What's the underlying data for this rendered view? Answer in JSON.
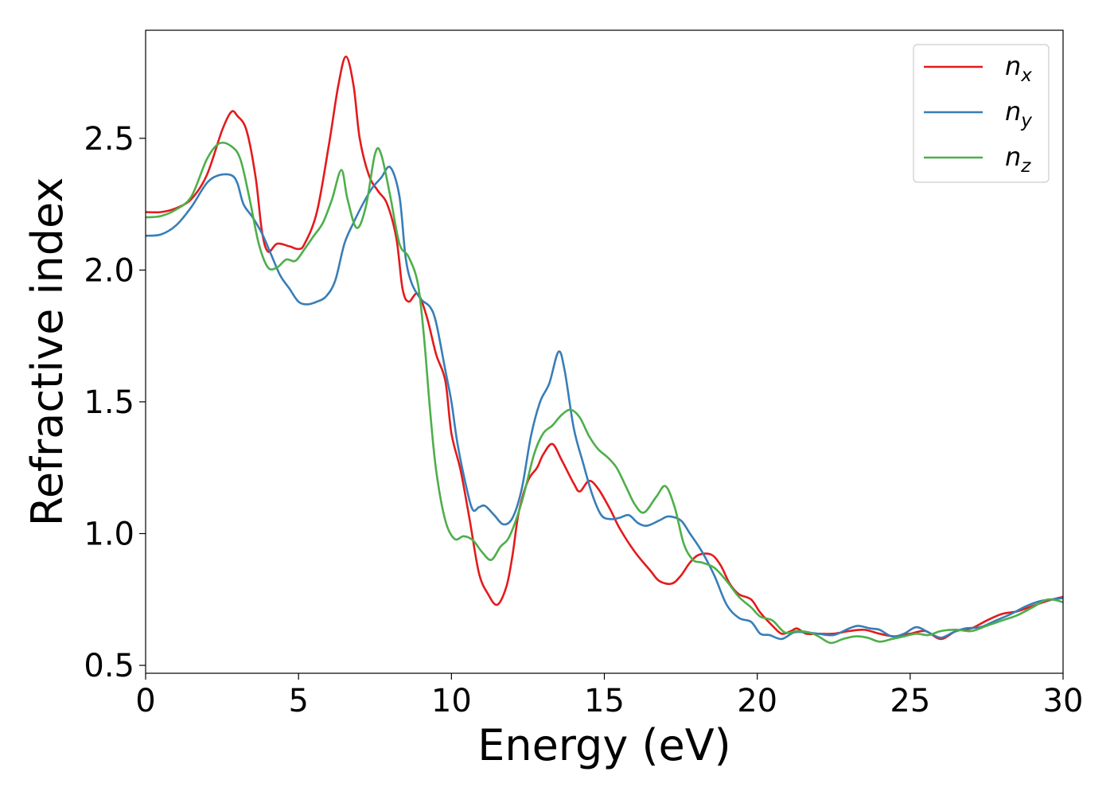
{
  "chart_data": {
    "type": "line",
    "title": "",
    "xlabel": "Energy (eV)",
    "ylabel": "Refractive index",
    "xlim": [
      0,
      30
    ],
    "ylim": [
      0.47,
      2.91
    ],
    "xticks": [
      0,
      5,
      10,
      15,
      20,
      25,
      30
    ],
    "xtick_labels": [
      "0",
      "5",
      "10",
      "15",
      "20",
      "25",
      "30"
    ],
    "yticks": [
      0.5,
      1.0,
      1.5,
      2.0,
      2.5
    ],
    "ytick_labels": [
      "0.5",
      "1.0",
      "1.5",
      "2.0",
      "2.5"
    ],
    "grid": false,
    "legend_position": "top-right",
    "series": [
      {
        "name": "n_x",
        "label_base": "n",
        "label_sub": "x",
        "color": "#e41a1c",
        "points": [
          [
            0,
            2.22
          ],
          [
            0.5,
            2.22
          ],
          [
            1,
            2.235
          ],
          [
            1.5,
            2.27
          ],
          [
            2,
            2.36
          ],
          [
            2.5,
            2.53
          ],
          [
            2.8,
            2.6
          ],
          [
            3,
            2.585
          ],
          [
            3.3,
            2.53
          ],
          [
            3.6,
            2.35
          ],
          [
            3.8,
            2.15
          ],
          [
            4.0,
            2.07
          ],
          [
            4.3,
            2.1
          ],
          [
            4.7,
            2.09
          ],
          [
            5.0,
            2.08
          ],
          [
            5.2,
            2.1
          ],
          [
            5.6,
            2.22
          ],
          [
            6.0,
            2.48
          ],
          [
            6.3,
            2.7
          ],
          [
            6.55,
            2.81
          ],
          [
            6.8,
            2.7
          ],
          [
            7.0,
            2.5
          ],
          [
            7.3,
            2.36
          ],
          [
            7.6,
            2.3
          ],
          [
            7.9,
            2.25
          ],
          [
            8.2,
            2.12
          ],
          [
            8.4,
            1.93
          ],
          [
            8.6,
            1.88
          ],
          [
            8.9,
            1.91
          ],
          [
            9.2,
            1.82
          ],
          [
            9.5,
            1.68
          ],
          [
            9.8,
            1.58
          ],
          [
            10.0,
            1.38
          ],
          [
            10.3,
            1.24
          ],
          [
            10.6,
            1.05
          ],
          [
            10.9,
            0.85
          ],
          [
            11.2,
            0.77
          ],
          [
            11.5,
            0.73
          ],
          [
            11.8,
            0.8
          ],
          [
            12.0,
            0.92
          ],
          [
            12.2,
            1.08
          ],
          [
            12.5,
            1.2
          ],
          [
            12.8,
            1.25
          ],
          [
            13.0,
            1.3
          ],
          [
            13.3,
            1.34
          ],
          [
            13.6,
            1.28
          ],
          [
            14.0,
            1.19
          ],
          [
            14.2,
            1.16
          ],
          [
            14.5,
            1.2
          ],
          [
            14.8,
            1.17
          ],
          [
            15.2,
            1.09
          ],
          [
            15.5,
            1.02
          ],
          [
            16.0,
            0.93
          ],
          [
            16.5,
            0.86
          ],
          [
            16.8,
            0.82
          ],
          [
            17.2,
            0.81
          ],
          [
            17.5,
            0.84
          ],
          [
            17.8,
            0.89
          ],
          [
            18.1,
            0.92
          ],
          [
            18.5,
            0.92
          ],
          [
            18.8,
            0.88
          ],
          [
            19.1,
            0.81
          ],
          [
            19.4,
            0.77
          ],
          [
            19.8,
            0.75
          ],
          [
            20.1,
            0.7
          ],
          [
            20.5,
            0.65
          ],
          [
            20.8,
            0.62
          ],
          [
            21.1,
            0.63
          ],
          [
            21.3,
            0.64
          ],
          [
            21.6,
            0.62
          ],
          [
            22.0,
            0.62
          ],
          [
            22.5,
            0.62
          ],
          [
            23.0,
            0.63
          ],
          [
            23.5,
            0.635
          ],
          [
            24.0,
            0.62
          ],
          [
            24.5,
            0.61
          ],
          [
            25.0,
            0.62
          ],
          [
            25.5,
            0.63
          ],
          [
            26.0,
            0.6
          ],
          [
            26.5,
            0.63
          ],
          [
            27.0,
            0.64
          ],
          [
            27.5,
            0.67
          ],
          [
            28.0,
            0.695
          ],
          [
            28.5,
            0.705
          ],
          [
            29.0,
            0.725
          ],
          [
            29.5,
            0.745
          ],
          [
            30.0,
            0.76
          ]
        ]
      },
      {
        "name": "n_y",
        "label_base": "n",
        "label_sub": "y",
        "color": "#377eb8",
        "points": [
          [
            0,
            2.13
          ],
          [
            0.5,
            2.135
          ],
          [
            1,
            2.17
          ],
          [
            1.5,
            2.24
          ],
          [
            2,
            2.33
          ],
          [
            2.4,
            2.36
          ],
          [
            2.8,
            2.36
          ],
          [
            3.0,
            2.33
          ],
          [
            3.2,
            2.25
          ],
          [
            3.5,
            2.2
          ],
          [
            3.8,
            2.14
          ],
          [
            4.1,
            2.06
          ],
          [
            4.4,
            1.98
          ],
          [
            4.7,
            1.93
          ],
          [
            5.0,
            1.88
          ],
          [
            5.3,
            1.87
          ],
          [
            5.6,
            1.88
          ],
          [
            5.9,
            1.9
          ],
          [
            6.2,
            1.96
          ],
          [
            6.5,
            2.1
          ],
          [
            6.8,
            2.18
          ],
          [
            7.1,
            2.25
          ],
          [
            7.4,
            2.31
          ],
          [
            7.7,
            2.35
          ],
          [
            8.0,
            2.39
          ],
          [
            8.3,
            2.28
          ],
          [
            8.5,
            2.05
          ],
          [
            8.7,
            1.95
          ],
          [
            9.0,
            1.89
          ],
          [
            9.3,
            1.86
          ],
          [
            9.5,
            1.8
          ],
          [
            9.8,
            1.62
          ],
          [
            10.0,
            1.5
          ],
          [
            10.2,
            1.34
          ],
          [
            10.5,
            1.17
          ],
          [
            10.7,
            1.09
          ],
          [
            10.9,
            1.1
          ],
          [
            11.1,
            1.105
          ],
          [
            11.4,
            1.07
          ],
          [
            11.7,
            1.035
          ],
          [
            12.0,
            1.06
          ],
          [
            12.3,
            1.17
          ],
          [
            12.6,
            1.37
          ],
          [
            12.9,
            1.5
          ],
          [
            13.2,
            1.57
          ],
          [
            13.5,
            1.69
          ],
          [
            13.7,
            1.62
          ],
          [
            14.0,
            1.4
          ],
          [
            14.3,
            1.27
          ],
          [
            14.6,
            1.15
          ],
          [
            14.9,
            1.07
          ],
          [
            15.2,
            1.055
          ],
          [
            15.5,
            1.06
          ],
          [
            15.8,
            1.07
          ],
          [
            16.1,
            1.04
          ],
          [
            16.4,
            1.03
          ],
          [
            16.8,
            1.05
          ],
          [
            17.1,
            1.065
          ],
          [
            17.5,
            1.05
          ],
          [
            17.8,
            1.0
          ],
          [
            18.2,
            0.93
          ],
          [
            18.6,
            0.84
          ],
          [
            19.0,
            0.73
          ],
          [
            19.4,
            0.68
          ],
          [
            19.8,
            0.665
          ],
          [
            20.1,
            0.62
          ],
          [
            20.4,
            0.615
          ],
          [
            20.8,
            0.6
          ],
          [
            21.2,
            0.625
          ],
          [
            21.6,
            0.625
          ],
          [
            22.0,
            0.62
          ],
          [
            22.5,
            0.615
          ],
          [
            23.0,
            0.64
          ],
          [
            23.3,
            0.65
          ],
          [
            23.7,
            0.64
          ],
          [
            24.0,
            0.635
          ],
          [
            24.4,
            0.61
          ],
          [
            24.8,
            0.62
          ],
          [
            25.2,
            0.645
          ],
          [
            25.6,
            0.625
          ],
          [
            26.0,
            0.605
          ],
          [
            26.4,
            0.625
          ],
          [
            26.8,
            0.64
          ],
          [
            27.3,
            0.645
          ],
          [
            27.8,
            0.67
          ],
          [
            28.3,
            0.695
          ],
          [
            28.8,
            0.725
          ],
          [
            29.3,
            0.745
          ],
          [
            30.0,
            0.755
          ]
        ]
      },
      {
        "name": "n_z",
        "label_base": "n",
        "label_sub": "z",
        "color": "#4daf4a",
        "points": [
          [
            0,
            2.2
          ],
          [
            0.5,
            2.205
          ],
          [
            1,
            2.23
          ],
          [
            1.5,
            2.28
          ],
          [
            2,
            2.42
          ],
          [
            2.4,
            2.48
          ],
          [
            2.8,
            2.47
          ],
          [
            3.1,
            2.42
          ],
          [
            3.4,
            2.27
          ],
          [
            3.7,
            2.1
          ],
          [
            4.0,
            2.01
          ],
          [
            4.3,
            2.01
          ],
          [
            4.6,
            2.04
          ],
          [
            4.9,
            2.035
          ],
          [
            5.2,
            2.08
          ],
          [
            5.5,
            2.13
          ],
          [
            5.8,
            2.18
          ],
          [
            6.1,
            2.27
          ],
          [
            6.4,
            2.38
          ],
          [
            6.6,
            2.27
          ],
          [
            6.9,
            2.16
          ],
          [
            7.2,
            2.24
          ],
          [
            7.5,
            2.44
          ],
          [
            7.7,
            2.44
          ],
          [
            8.0,
            2.28
          ],
          [
            8.3,
            2.1
          ],
          [
            8.6,
            2.05
          ],
          [
            8.9,
            1.95
          ],
          [
            9.1,
            1.75
          ],
          [
            9.3,
            1.47
          ],
          [
            9.5,
            1.24
          ],
          [
            9.8,
            1.05
          ],
          [
            10.1,
            0.98
          ],
          [
            10.4,
            0.99
          ],
          [
            10.7,
            0.975
          ],
          [
            11.0,
            0.93
          ],
          [
            11.3,
            0.9
          ],
          [
            11.6,
            0.95
          ],
          [
            11.9,
            0.99
          ],
          [
            12.3,
            1.12
          ],
          [
            12.7,
            1.3
          ],
          [
            13.0,
            1.38
          ],
          [
            13.3,
            1.41
          ],
          [
            13.6,
            1.45
          ],
          [
            13.9,
            1.47
          ],
          [
            14.2,
            1.44
          ],
          [
            14.5,
            1.37
          ],
          [
            14.8,
            1.32
          ],
          [
            15.1,
            1.29
          ],
          [
            15.4,
            1.25
          ],
          [
            15.7,
            1.18
          ],
          [
            16.0,
            1.11
          ],
          [
            16.3,
            1.08
          ],
          [
            16.7,
            1.14
          ],
          [
            17.0,
            1.18
          ],
          [
            17.3,
            1.1
          ],
          [
            17.6,
            0.96
          ],
          [
            17.9,
            0.9
          ],
          [
            18.2,
            0.89
          ],
          [
            18.6,
            0.87
          ],
          [
            19.0,
            0.82
          ],
          [
            19.4,
            0.76
          ],
          [
            19.8,
            0.72
          ],
          [
            20.1,
            0.685
          ],
          [
            20.5,
            0.67
          ],
          [
            20.9,
            0.625
          ],
          [
            21.3,
            0.63
          ],
          [
            21.7,
            0.625
          ],
          [
            22.0,
            0.61
          ],
          [
            22.4,
            0.585
          ],
          [
            22.8,
            0.6
          ],
          [
            23.2,
            0.61
          ],
          [
            23.6,
            0.605
          ],
          [
            24.0,
            0.59
          ],
          [
            24.4,
            0.6
          ],
          [
            24.8,
            0.61
          ],
          [
            25.2,
            0.62
          ],
          [
            25.6,
            0.615
          ],
          [
            26.0,
            0.63
          ],
          [
            26.5,
            0.635
          ],
          [
            27.0,
            0.63
          ],
          [
            27.5,
            0.65
          ],
          [
            28.0,
            0.67
          ],
          [
            28.5,
            0.69
          ],
          [
            29.0,
            0.72
          ],
          [
            29.5,
            0.75
          ],
          [
            30.0,
            0.74
          ]
        ]
      }
    ]
  }
}
